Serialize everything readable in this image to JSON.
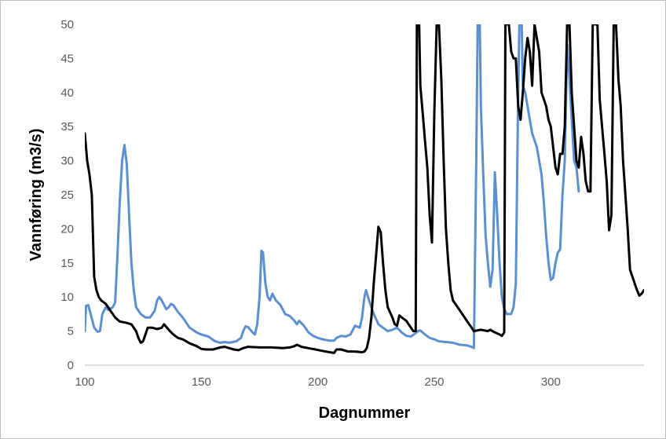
{
  "chart_data": {
    "type": "line",
    "title": "",
    "xlabel": "Dagnummer",
    "ylabel": "Vannføring (m3/s)",
    "xlim": [
      100,
      340
    ],
    "ylim": [
      0,
      50
    ],
    "grid": false,
    "legend": "none",
    "x_ticks": [
      100,
      150,
      200,
      250,
      300
    ],
    "y_ticks": [
      0,
      5,
      10,
      15,
      20,
      25,
      30,
      35,
      40,
      45,
      50
    ],
    "series": [
      {
        "color": "#5b8fd0",
        "points": [
          [
            100,
            5
          ],
          [
            100.5,
            8.7
          ],
          [
            101.5,
            8.8
          ],
          [
            102.5,
            7.5
          ],
          [
            104,
            5.5
          ],
          [
            105.5,
            4.9
          ],
          [
            106.5,
            5.0
          ],
          [
            107.5,
            7.5
          ],
          [
            109,
            8.5
          ],
          [
            110,
            8.1
          ],
          [
            112,
            8.5
          ],
          [
            113,
            9.2
          ],
          [
            114,
            16
          ],
          [
            115,
            24
          ],
          [
            116,
            30
          ],
          [
            117,
            32.3
          ],
          [
            118,
            29.5
          ],
          [
            119,
            22
          ],
          [
            120,
            15
          ],
          [
            121,
            11
          ],
          [
            122,
            8.5
          ],
          [
            124,
            7.5
          ],
          [
            126,
            7.0
          ],
          [
            128,
            7.0
          ],
          [
            130,
            8.0
          ],
          [
            131,
            9.5
          ],
          [
            132,
            10
          ],
          [
            133,
            9.5
          ],
          [
            135,
            8.2
          ],
          [
            136,
            8.5
          ],
          [
            137,
            9.0
          ],
          [
            138,
            8.8
          ],
          [
            140,
            7.8
          ],
          [
            142,
            7.0
          ],
          [
            145,
            5.5
          ],
          [
            148,
            4.8
          ],
          [
            150,
            4.5
          ],
          [
            153,
            4.2
          ],
          [
            156,
            3.5
          ],
          [
            158,
            3.3
          ],
          [
            160,
            3.4
          ],
          [
            162,
            3.3
          ],
          [
            165,
            3.5
          ],
          [
            167,
            4.0
          ],
          [
            168,
            5.0
          ],
          [
            169,
            5.7
          ],
          [
            170,
            5.6
          ],
          [
            172,
            4.8
          ],
          [
            173,
            4.5
          ],
          [
            174,
            6.0
          ],
          [
            175,
            10
          ],
          [
            175.8,
            16.8
          ],
          [
            176.5,
            16.5
          ],
          [
            177.5,
            12
          ],
          [
            178.5,
            10
          ],
          [
            179.5,
            9.5
          ],
          [
            180.5,
            10.5
          ],
          [
            182,
            9.5
          ],
          [
            184,
            8.8
          ],
          [
            186,
            7.5
          ],
          [
            188,
            7.2
          ],
          [
            190,
            6.5
          ],
          [
            191,
            6.0
          ],
          [
            192,
            6.5
          ],
          [
            194,
            5.8
          ],
          [
            196,
            4.8
          ],
          [
            198,
            4.3
          ],
          [
            200,
            4.0
          ],
          [
            202,
            3.8
          ],
          [
            205,
            3.6
          ],
          [
            207,
            3.6
          ],
          [
            208,
            4.0
          ],
          [
            210,
            4.3
          ],
          [
            212,
            4.2
          ],
          [
            214,
            4.5
          ],
          [
            216,
            5.8
          ],
          [
            218,
            5.5
          ],
          [
            219,
            7.0
          ],
          [
            220,
            10
          ],
          [
            220.7,
            11
          ],
          [
            222,
            9.5
          ],
          [
            224,
            7.5
          ],
          [
            226,
            6.0
          ],
          [
            228,
            5.5
          ],
          [
            230,
            5.0
          ],
          [
            232,
            5.2
          ],
          [
            234,
            5.5
          ],
          [
            236,
            4.8
          ],
          [
            238,
            4.3
          ],
          [
            240,
            4.2
          ],
          [
            242,
            4.7
          ],
          [
            243,
            5.0
          ],
          [
            244,
            5.1
          ],
          [
            246,
            4.5
          ],
          [
            248,
            4.0
          ],
          [
            250,
            3.8
          ],
          [
            252,
            3.5
          ],
          [
            255,
            3.4
          ],
          [
            258,
            3.3
          ],
          [
            261,
            3.0
          ],
          [
            264,
            2.9
          ],
          [
            266,
            2.7
          ],
          [
            267,
            2.5
          ],
          [
            268,
            30
          ],
          [
            268.6,
            50
          ],
          [
            269.5,
            50
          ],
          [
            270,
            38
          ],
          [
            271,
            28
          ],
          [
            272,
            19
          ],
          [
            273,
            15
          ],
          [
            274,
            11.5
          ],
          [
            275,
            14
          ],
          [
            276,
            28.3
          ],
          [
            277,
            22
          ],
          [
            278,
            15
          ],
          [
            279,
            10
          ],
          [
            280,
            8.3
          ],
          [
            281,
            7.5
          ],
          [
            283,
            7.5
          ],
          [
            284,
            8.5
          ],
          [
            285,
            12
          ],
          [
            286,
            40
          ],
          [
            286.5,
            50
          ],
          [
            287.5,
            50
          ],
          [
            288,
            41
          ],
          [
            289,
            40
          ],
          [
            290,
            38
          ],
          [
            291,
            36
          ],
          [
            292,
            34
          ],
          [
            294,
            32
          ],
          [
            296,
            28
          ],
          [
            297,
            24
          ],
          [
            298,
            19
          ],
          [
            299,
            15
          ],
          [
            300,
            12.5
          ],
          [
            301,
            12.8
          ],
          [
            302,
            15
          ],
          [
            303,
            16.5
          ],
          [
            304,
            17
          ],
          [
            305,
            25
          ],
          [
            306,
            30
          ],
          [
            307,
            47
          ],
          [
            308,
            42
          ],
          [
            309,
            36
          ],
          [
            310,
            30
          ],
          [
            311,
            29
          ],
          [
            312,
            25.5
          ]
        ]
      },
      {
        "color": "#000000",
        "points": [
          [
            100,
            34
          ],
          [
            101,
            30
          ],
          [
            102,
            28
          ],
          [
            103,
            25
          ],
          [
            104,
            13
          ],
          [
            105,
            11
          ],
          [
            106,
            10
          ],
          [
            107,
            9.5
          ],
          [
            109,
            9.0
          ],
          [
            111,
            8
          ],
          [
            113,
            7
          ],
          [
            115,
            6.4
          ],
          [
            118,
            6.2
          ],
          [
            120,
            6.0
          ],
          [
            122,
            5.0
          ],
          [
            123,
            4.0
          ],
          [
            124,
            3.3
          ],
          [
            125,
            3.5
          ],
          [
            127,
            5.5
          ],
          [
            129,
            5.5
          ],
          [
            131,
            5.3
          ],
          [
            133,
            5.5
          ],
          [
            134,
            6.0
          ],
          [
            136,
            5.2
          ],
          [
            138,
            4.5
          ],
          [
            140,
            4.0
          ],
          [
            142,
            3.8
          ],
          [
            145,
            3.2
          ],
          [
            148,
            2.8
          ],
          [
            150,
            2.4
          ],
          [
            152,
            2.3
          ],
          [
            155,
            2.3
          ],
          [
            158,
            2.6
          ],
          [
            160,
            2.7
          ],
          [
            162,
            2.5
          ],
          [
            164,
            2.3
          ],
          [
            166,
            2.2
          ],
          [
            168,
            2.5
          ],
          [
            170,
            2.7
          ],
          [
            175,
            2.6
          ],
          [
            180,
            2.6
          ],
          [
            185,
            2.5
          ],
          [
            188,
            2.6
          ],
          [
            190,
            2.8
          ],
          [
            191,
            3.0
          ],
          [
            193,
            2.7
          ],
          [
            196,
            2.5
          ],
          [
            199,
            2.3
          ],
          [
            202,
            2.1
          ],
          [
            205,
            1.9
          ],
          [
            207,
            1.8
          ],
          [
            208,
            2.3
          ],
          [
            210,
            2.3
          ],
          [
            213,
            2.0
          ],
          [
            216,
            2.0
          ],
          [
            219,
            1.9
          ],
          [
            220,
            2.0
          ],
          [
            221,
            2.5
          ],
          [
            222,
            4.0
          ],
          [
            223,
            7.0
          ],
          [
            224,
            12
          ],
          [
            225,
            16
          ],
          [
            226,
            20.3
          ],
          [
            227,
            19.5
          ],
          [
            228,
            15
          ],
          [
            229,
            11
          ],
          [
            230,
            8.5
          ],
          [
            232,
            7.0
          ],
          [
            233,
            6.0
          ],
          [
            234,
            5.8
          ],
          [
            235,
            7.3
          ],
          [
            236,
            7.0
          ],
          [
            238,
            6.5
          ],
          [
            240,
            5.5
          ],
          [
            241,
            5.0
          ],
          [
            242,
            5.0
          ],
          [
            242.5,
            50
          ],
          [
            243.5,
            50
          ],
          [
            244,
            41
          ],
          [
            245,
            37
          ],
          [
            246,
            33
          ],
          [
            247,
            29
          ],
          [
            248,
            22
          ],
          [
            249,
            18
          ],
          [
            250,
            37
          ],
          [
            251,
            50
          ],
          [
            252,
            50
          ],
          [
            253,
            42
          ],
          [
            254,
            30
          ],
          [
            255,
            20
          ],
          [
            256,
            15
          ],
          [
            257,
            11
          ],
          [
            258,
            9.5
          ],
          [
            260,
            8.5
          ],
          [
            262,
            7.5
          ],
          [
            264,
            6.5
          ],
          [
            266,
            5.5
          ],
          [
            267,
            5.0
          ],
          [
            270,
            5.2
          ],
          [
            273,
            5.0
          ],
          [
            274,
            5.2
          ],
          [
            276,
            4.8
          ],
          [
            278,
            4.5
          ],
          [
            279,
            4.3
          ],
          [
            280,
            4.8
          ],
          [
            280.5,
            50
          ],
          [
            282,
            50
          ],
          [
            283,
            46
          ],
          [
            284,
            45
          ],
          [
            285,
            45
          ],
          [
            286,
            38
          ],
          [
            287,
            36
          ],
          [
            288,
            40
          ],
          [
            289,
            45
          ],
          [
            290,
            48
          ],
          [
            291,
            46
          ],
          [
            292,
            41
          ],
          [
            293,
            50
          ],
          [
            294,
            48
          ],
          [
            295,
            46
          ],
          [
            296,
            40
          ],
          [
            298,
            38
          ],
          [
            299,
            36
          ],
          [
            300,
            35
          ],
          [
            302,
            29
          ],
          [
            303,
            28
          ],
          [
            304,
            31
          ],
          [
            305,
            31
          ],
          [
            306,
            35
          ],
          [
            307,
            50
          ],
          [
            308,
            50
          ],
          [
            309,
            40
          ],
          [
            310,
            35
          ],
          [
            311,
            30
          ],
          [
            312,
            29
          ],
          [
            313,
            33.5
          ],
          [
            314,
            31
          ],
          [
            315,
            27
          ],
          [
            316,
            25.5
          ],
          [
            317,
            25.5
          ],
          [
            318,
            50
          ],
          [
            320,
            50
          ],
          [
            321,
            39
          ],
          [
            322,
            35
          ],
          [
            323,
            31
          ],
          [
            324,
            27
          ],
          [
            325,
            19.8
          ],
          [
            326,
            22
          ],
          [
            327,
            50
          ],
          [
            328,
            50
          ],
          [
            329,
            42
          ],
          [
            330,
            38
          ],
          [
            331,
            30
          ],
          [
            332,
            25
          ],
          [
            333,
            20
          ],
          [
            334,
            14
          ],
          [
            335,
            13
          ],
          [
            336,
            12
          ],
          [
            337,
            11
          ],
          [
            338,
            10.2
          ],
          [
            339,
            10.5
          ],
          [
            340,
            11
          ]
        ]
      }
    ]
  }
}
